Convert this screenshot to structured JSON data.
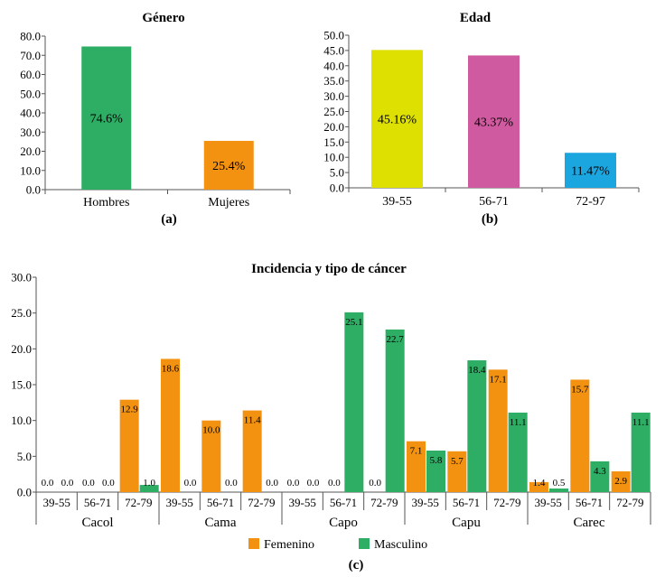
{
  "colors": {
    "green": "#2ead64",
    "orange": "#f39110",
    "yellow": "#dde000",
    "magenta": "#cf5a9f",
    "blue": "#1ba6e0",
    "axis": "#555555"
  },
  "chart_data": [
    {
      "id": "a",
      "type": "bar",
      "title": "Género",
      "caption": "(a)",
      "categories": [
        "Hombres",
        "Mujeres"
      ],
      "values": [
        74.6,
        25.4
      ],
      "value_labels": [
        "74.6%",
        "25.4%"
      ],
      "bar_colors": [
        "#2ead64",
        "#f39110"
      ],
      "ylim": [
        0,
        80
      ],
      "yticks": [
        "0.0",
        "10.0",
        "20.0",
        "30.0",
        "40.0",
        "50.0",
        "60.0",
        "70.0",
        "80.0"
      ],
      "grid": false
    },
    {
      "id": "b",
      "type": "bar",
      "title": "Edad",
      "caption": "(b)",
      "categories": [
        "39-55",
        "56-71",
        "72-97"
      ],
      "values": [
        45.16,
        43.37,
        11.47
      ],
      "value_labels": [
        "45.16%",
        "43.37%",
        "11.47%"
      ],
      "bar_colors": [
        "#dde000",
        "#cf5a9f",
        "#1ba6e0"
      ],
      "ylim": [
        0,
        50
      ],
      "yticks": [
        "0.0",
        "5.0",
        "10.0",
        "15.0",
        "20.0",
        "25.0",
        "30.0",
        "35.0",
        "40.0",
        "45.0",
        "50.0"
      ],
      "grid": false
    },
    {
      "id": "c",
      "type": "bar",
      "title": "Incidencia y tipo de cáncer",
      "caption": "(c)",
      "groups": [
        "Cacol",
        "Cama",
        "Capo",
        "Capu",
        "Carec"
      ],
      "age_categories": [
        "39-55",
        "56-71",
        "72-79"
      ],
      "series": [
        {
          "name": "Femenino",
          "color": "#f39110",
          "values": [
            [
              0.0,
              0.0,
              12.9
            ],
            [
              18.6,
              10.0,
              11.4
            ],
            [
              0.0,
              0.0,
              0.0
            ],
            [
              7.1,
              5.7,
              17.1
            ],
            [
              1.4,
              15.7,
              2.9
            ]
          ],
          "labels": [
            [
              "0.0",
              "0.0",
              "12.9"
            ],
            [
              "18.6",
              "10.0",
              "11.4"
            ],
            [
              "0.0",
              "0.0",
              "0.0"
            ],
            [
              "7.1",
              "5.7",
              "17.1"
            ],
            [
              "1.4",
              "15.7",
              "2.9"
            ]
          ]
        },
        {
          "name": "Masculino",
          "color": "#2ead64",
          "values": [
            [
              0.0,
              0.0,
              1.0
            ],
            [
              0.0,
              0.0,
              0.0
            ],
            [
              0.0,
              25.1,
              22.7
            ],
            [
              5.8,
              18.4,
              11.1
            ],
            [
              0.5,
              4.3,
              11.1
            ]
          ],
          "labels": [
            [
              "0.0",
              "0.0",
              "1.0"
            ],
            [
              "0.0",
              "0.0",
              "0.0"
            ],
            [
              "0.0",
              "25.1",
              "22.7"
            ],
            [
              "5.8",
              "18.4",
              "11.1"
            ],
            [
              "0.5",
              "4.3",
              "11.1"
            ]
          ]
        }
      ],
      "ylim": [
        0,
        30
      ],
      "yticks": [
        "0.0",
        "5.0",
        "10.0",
        "15.0",
        "20.0",
        "25.0",
        "30.0"
      ],
      "legend": "bottom",
      "grid": false
    }
  ]
}
